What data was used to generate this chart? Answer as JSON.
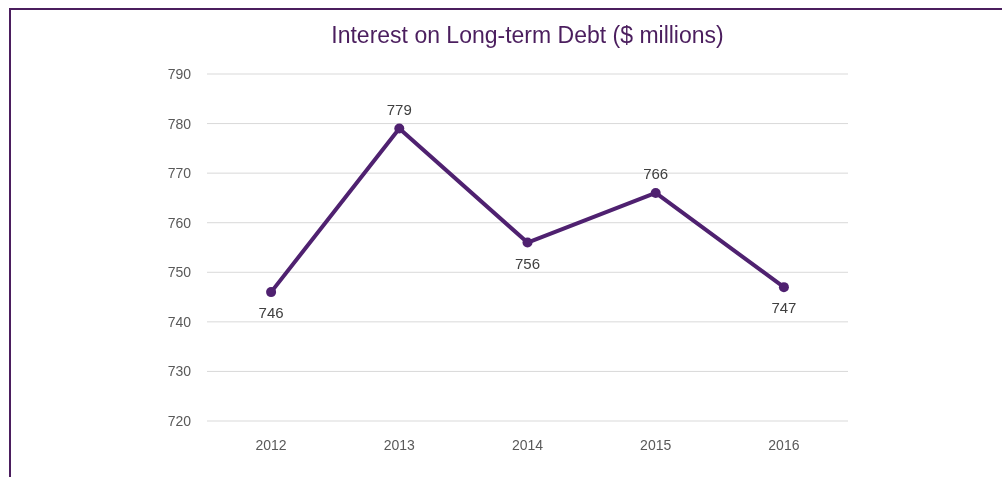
{
  "chart_data": {
    "type": "line",
    "title": "Interest on Long-term Debt ($ millions)",
    "categories": [
      "2012",
      "2013",
      "2014",
      "2015",
      "2016"
    ],
    "series": [
      {
        "color": "#4f2170",
        "values": [
          746,
          779,
          756,
          766,
          747
        ]
      }
    ],
    "ylim": [
      720,
      790
    ],
    "yticks": [
      720,
      730,
      740,
      750,
      760,
      770,
      780,
      790
    ],
    "grid": "y",
    "marker": "circle",
    "line_style": "solid",
    "data_labels": true
  }
}
